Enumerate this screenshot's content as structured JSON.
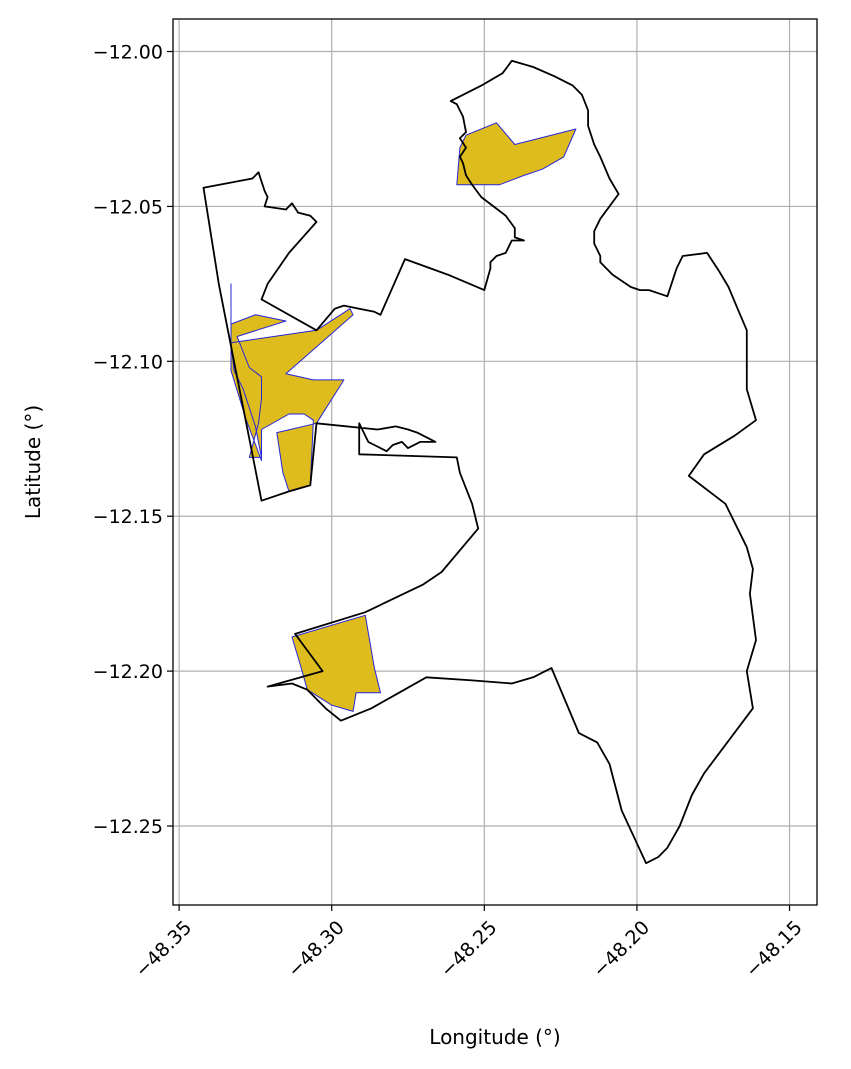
{
  "chart_data": {
    "type": "map",
    "title": "",
    "xlabel": "Longitude (°)",
    "ylabel": "Latitude (°)",
    "xlim": [
      -48.352,
      -48.141
    ],
    "ylim": [
      -12.2755,
      -11.9895
    ],
    "x_ticks": [
      -48.35,
      -48.3,
      -48.25,
      -48.2,
      -48.15
    ],
    "x_tick_labels": [
      "−48.35",
      "−48.30",
      "−48.25",
      "−48.20",
      "−48.15"
    ],
    "y_ticks": [
      -12.0,
      -12.05,
      -12.1,
      -12.15,
      -12.2,
      -12.25
    ],
    "y_tick_labels": [
      "−12.00",
      "−12.05",
      "−12.10",
      "−12.15",
      "−12.20",
      "−12.25"
    ],
    "grid": true,
    "colors": {
      "boundary": "#000000",
      "fill": "#dfbc1e",
      "fill_edge": "#2626d9",
      "grid": "#b0b0b0"
    },
    "boundary": [
      [
        -48.342,
        -12.044
      ],
      [
        -48.326,
        -12.041
      ],
      [
        -48.324,
        -12.039
      ],
      [
        -48.322,
        -12.045
      ],
      [
        -48.321,
        -12.047
      ],
      [
        -48.322,
        -12.05
      ],
      [
        -48.315,
        -12.051
      ],
      [
        -48.313,
        -12.049
      ],
      [
        -48.311,
        -12.052
      ],
      [
        -48.307,
        -12.053
      ],
      [
        -48.305,
        -12.055
      ],
      [
        -48.314,
        -12.065
      ],
      [
        -48.321,
        -12.075
      ],
      [
        -48.323,
        -12.08
      ],
      [
        -48.305,
        -12.09
      ],
      [
        -48.299,
        -12.083
      ],
      [
        -48.296,
        -12.082
      ],
      [
        -48.291,
        -12.083
      ],
      [
        -48.286,
        -12.084
      ],
      [
        -48.284,
        -12.085
      ],
      [
        -48.276,
        -12.067
      ],
      [
        -48.262,
        -12.072
      ],
      [
        -48.25,
        -12.077
      ],
      [
        -48.248,
        -12.07
      ],
      [
        -48.248,
        -12.068
      ],
      [
        -48.246,
        -12.066
      ],
      [
        -48.243,
        -12.065
      ],
      [
        -48.241,
        -12.061
      ],
      [
        -48.237,
        -12.061
      ],
      [
        -48.24,
        -12.06
      ],
      [
        -48.24,
        -12.057
      ],
      [
        -48.243,
        -12.053
      ],
      [
        -48.247,
        -12.05
      ],
      [
        -48.251,
        -12.047
      ],
      [
        -48.254,
        -12.043
      ],
      [
        -48.256,
        -12.04
      ],
      [
        -48.257,
        -12.036
      ],
      [
        -48.258,
        -12.034
      ],
      [
        -48.256,
        -12.031
      ],
      [
        -48.258,
        -12.028
      ],
      [
        -48.256,
        -12.026
      ],
      [
        -48.257,
        -12.021
      ],
      [
        -48.259,
        -12.017
      ],
      [
        -48.261,
        -12.016
      ],
      [
        -48.251,
        -12.011
      ],
      [
        -48.244,
        -12.007
      ],
      [
        -48.241,
        -12.003
      ],
      [
        -48.234,
        -12.005
      ],
      [
        -48.227,
        -12.008
      ],
      [
        -48.221,
        -12.011
      ],
      [
        -48.218,
        -12.014
      ],
      [
        -48.216,
        -12.019
      ],
      [
        -48.216,
        -12.024
      ],
      [
        -48.214,
        -12.03
      ],
      [
        -48.212,
        -12.034
      ],
      [
        -48.209,
        -12.041
      ],
      [
        -48.206,
        -12.046
      ],
      [
        -48.212,
        -12.054
      ],
      [
        -48.214,
        -12.058
      ],
      [
        -48.214,
        -12.062
      ],
      [
        -48.212,
        -12.066
      ],
      [
        -48.212,
        -12.068
      ],
      [
        -48.208,
        -12.072
      ],
      [
        -48.202,
        -12.076
      ],
      [
        -48.199,
        -12.077
      ],
      [
        -48.196,
        -12.077
      ],
      [
        -48.19,
        -12.079
      ],
      [
        -48.187,
        -12.07
      ],
      [
        -48.185,
        -12.066
      ],
      [
        -48.177,
        -12.065
      ],
      [
        -48.173,
        -12.071
      ],
      [
        -48.17,
        -12.076
      ],
      [
        -48.167,
        -12.083
      ],
      [
        -48.164,
        -12.09
      ],
      [
        -48.164,
        -12.109
      ],
      [
        -48.161,
        -12.119
      ],
      [
        -48.168,
        -12.124
      ],
      [
        -48.178,
        -12.13
      ],
      [
        -48.183,
        -12.137
      ],
      [
        -48.171,
        -12.146
      ],
      [
        -48.164,
        -12.16
      ],
      [
        -48.162,
        -12.167
      ],
      [
        -48.163,
        -12.175
      ],
      [
        -48.161,
        -12.19
      ],
      [
        -48.164,
        -12.2
      ],
      [
        -48.162,
        -12.212
      ],
      [
        -48.178,
        -12.233
      ],
      [
        -48.182,
        -12.24
      ],
      [
        -48.186,
        -12.25
      ],
      [
        -48.19,
        -12.257
      ],
      [
        -48.193,
        -12.26
      ],
      [
        -48.197,
        -12.262
      ],
      [
        -48.205,
        -12.245
      ],
      [
        -48.209,
        -12.23
      ],
      [
        -48.213,
        -12.223
      ],
      [
        -48.219,
        -12.22
      ],
      [
        -48.228,
        -12.199
      ],
      [
        -48.23,
        -12.2
      ],
      [
        -48.234,
        -12.202
      ],
      [
        -48.241,
        -12.204
      ],
      [
        -48.254,
        -12.203
      ],
      [
        -48.269,
        -12.202
      ],
      [
        -48.278,
        -12.207
      ],
      [
        -48.287,
        -12.212
      ],
      [
        -48.297,
        -12.216
      ],
      [
        -48.302,
        -12.212
      ],
      [
        -48.308,
        -12.206
      ],
      [
        -48.313,
        -12.204
      ],
      [
        -48.321,
        -12.205
      ],
      [
        -48.303,
        -12.2
      ],
      [
        -48.312,
        -12.188
      ],
      [
        -48.289,
        -12.181
      ],
      [
        -48.27,
        -12.172
      ],
      [
        -48.264,
        -12.168
      ],
      [
        -48.252,
        -12.154
      ],
      [
        -48.254,
        -12.146
      ],
      [
        -48.258,
        -12.136
      ],
      [
        -48.259,
        -12.131
      ],
      [
        -48.291,
        -12.13
      ],
      [
        -48.291,
        -12.12
      ],
      [
        -48.288,
        -12.126
      ],
      [
        -48.286,
        -12.127
      ],
      [
        -48.282,
        -12.129
      ],
      [
        -48.28,
        -12.127
      ],
      [
        -48.277,
        -12.126
      ],
      [
        -48.275,
        -12.128
      ],
      [
        -48.271,
        -12.126
      ],
      [
        -48.266,
        -12.126
      ],
      [
        -48.272,
        -12.123
      ],
      [
        -48.275,
        -12.122
      ],
      [
        -48.279,
        -12.121
      ],
      [
        -48.285,
        -12.122
      ],
      [
        -48.305,
        -12.12
      ],
      [
        -48.307,
        -12.14
      ],
      [
        -48.314,
        -12.142
      ],
      [
        -48.323,
        -12.145
      ],
      [
        -48.326,
        -12.13
      ],
      [
        -48.33,
        -12.11
      ],
      [
        -48.334,
        -12.09
      ],
      [
        -48.337,
        -12.075
      ],
      [
        -48.342,
        -12.044
      ]
    ],
    "filled_regions": [
      [
        [
          -48.333,
          -12.075
        ],
        [
          -48.333,
          -12.088
        ],
        [
          -48.325,
          -12.085
        ],
        [
          -48.315,
          -12.087
        ],
        [
          -48.331,
          -12.092
        ],
        [
          -48.327,
          -12.102
        ],
        [
          -48.323,
          -12.105
        ],
        [
          -48.323,
          -12.112
        ],
        [
          -48.324,
          -12.12
        ],
        [
          -48.327,
          -12.131
        ],
        [
          -48.326,
          -12.131
        ],
        [
          -48.323,
          -12.131
        ],
        [
          -48.325,
          -12.121
        ],
        [
          -48.329,
          -12.109
        ],
        [
          -48.332,
          -12.103
        ],
        [
          -48.333,
          -12.094
        ],
        [
          -48.305,
          -12.09
        ],
        [
          -48.294,
          -12.083
        ],
        [
          -48.293,
          -12.085
        ],
        [
          -48.315,
          -12.104
        ],
        [
          -48.306,
          -12.106
        ],
        [
          -48.296,
          -12.106
        ],
        [
          -48.305,
          -12.12
        ],
        [
          -48.318,
          -12.123
        ],
        [
          -48.316,
          -12.136
        ],
        [
          -48.314,
          -12.142
        ],
        [
          -48.307,
          -12.14
        ],
        [
          -48.306,
          -12.119
        ],
        [
          -48.309,
          -12.117
        ],
        [
          -48.314,
          -12.117
        ],
        [
          -48.323,
          -12.122
        ],
        [
          -48.323,
          -12.132
        ],
        [
          -48.328,
          -12.119
        ],
        [
          -48.333,
          -12.103
        ],
        [
          -48.333,
          -12.075
        ]
      ],
      [
        [
          -48.256,
          -12.027
        ],
        [
          -48.246,
          -12.023
        ],
        [
          -48.24,
          -12.03
        ],
        [
          -48.22,
          -12.025
        ],
        [
          -48.224,
          -12.034
        ],
        [
          -48.231,
          -12.038
        ],
        [
          -48.237,
          -12.04
        ],
        [
          -48.245,
          -12.043
        ],
        [
          -48.259,
          -12.043
        ],
        [
          -48.258,
          -12.031
        ],
        [
          -48.256,
          -12.027
        ]
      ],
      [
        [
          -48.313,
          -12.189
        ],
        [
          -48.289,
          -12.182
        ],
        [
          -48.286,
          -12.199
        ],
        [
          -48.284,
          -12.207
        ],
        [
          -48.292,
          -12.207
        ],
        [
          -48.293,
          -12.213
        ],
        [
          -48.3,
          -12.211
        ],
        [
          -48.308,
          -12.206
        ],
        [
          -48.31,
          -12.199
        ],
        [
          -48.313,
          -12.189
        ]
      ]
    ]
  }
}
